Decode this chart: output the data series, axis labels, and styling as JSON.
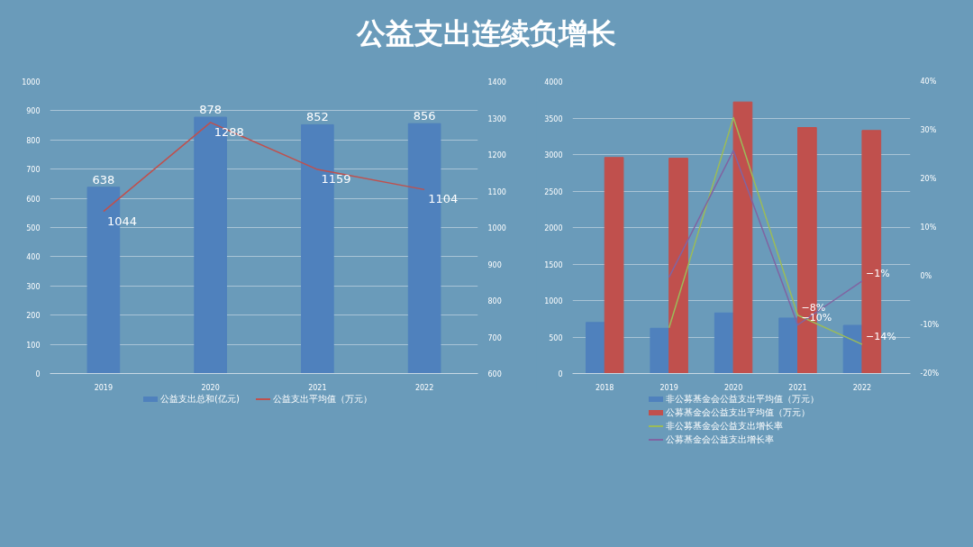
{
  "chart_data": [
    {
      "type": "bar",
      "title": "公益支出连续负增长",
      "categories": [
        "2019",
        "2020",
        "2021",
        "2022"
      ],
      "series": [
        {
          "name": "公益支出总和(亿元)",
          "color": "#4f81bd",
          "values": [
            638,
            878,
            852,
            856
          ]
        },
        {
          "name": "公益支出平均值（万元）",
          "type": "line",
          "axis": "y2",
          "color": "#c0504d",
          "values": [
            1044,
            1288,
            1159,
            1104
          ]
        }
      ],
      "ylim": [
        0,
        1000
      ],
      "yticks": [
        0,
        100,
        200,
        300,
        400,
        500,
        600,
        700,
        800,
        900,
        1000
      ],
      "y2lim": [
        600,
        1400
      ],
      "y2ticks": [
        600,
        700,
        800,
        900,
        1000,
        1100,
        1200,
        1300,
        1400
      ],
      "data_labels": true,
      "grid": "y",
      "legend": "bottom"
    },
    {
      "type": "bar",
      "categories": [
        "2018",
        "2019",
        "2020",
        "2021",
        "2022"
      ],
      "series": [
        {
          "name": "非公募基金会公益支出平均值（万元）",
          "color": "#4f81bd",
          "values": [
            700,
            620,
            830,
            760,
            660
          ]
        },
        {
          "name": "公募基金会公益支出平均值（万元）",
          "color": "#c0504d",
          "values": [
            2960,
            2950,
            3720,
            3370,
            3330
          ]
        },
        {
          "name": "非公募基金会公益支出增长率",
          "type": "line",
          "axis": "y2",
          "color": "#9bbb59",
          "values": [
            null,
            -10.6,
            32.6,
            -8,
            -14
          ],
          "value_labels": [
            null,
            null,
            null,
            "−8%",
            "−14%"
          ]
        },
        {
          "name": "公募基金会公益支出增长率",
          "type": "line",
          "axis": "y2",
          "color": "#8064a2",
          "values": [
            null,
            -0.2,
            25.8,
            -10,
            -1
          ],
          "value_labels": [
            null,
            null,
            null,
            "−10%",
            "−1%"
          ]
        }
      ],
      "ylim": [
        0,
        4000
      ],
      "yticks": [
        0,
        500,
        1000,
        1500,
        2000,
        2500,
        3000,
        3500,
        4000
      ],
      "y2lim": [
        -20,
        40
      ],
      "y2ticks": [
        {
          "value": -20,
          "label": "-20%"
        },
        {
          "value": -10,
          "label": "-10%"
        },
        {
          "value": 0,
          "label": "0%"
        },
        {
          "value": 10,
          "label": "10%"
        },
        {
          "value": 20,
          "label": "20%"
        },
        {
          "value": 30,
          "label": "30%"
        },
        {
          "value": 40,
          "label": "40%"
        }
      ],
      "grid": "y",
      "legend": "bottom"
    }
  ]
}
